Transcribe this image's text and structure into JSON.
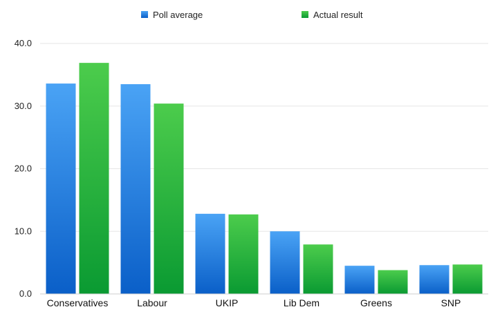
{
  "chart_data": {
    "type": "bar",
    "title": "",
    "xlabel": "",
    "ylabel": "",
    "ylim": [
      0,
      40
    ],
    "yticks": [
      "0.0",
      "10.0",
      "20.0",
      "30.0",
      "40.0"
    ],
    "grid": true,
    "legend_position": "top",
    "categories": [
      "Conservatives",
      "Labour",
      "UKIP",
      "Lib Dem",
      "Greens",
      "SNP"
    ],
    "series": [
      {
        "name": "Poll average",
        "color": "#2f7fe0",
        "values": [
          33.6,
          33.5,
          12.8,
          10.0,
          4.5,
          4.6
        ]
      },
      {
        "name": "Actual result",
        "color": "#1fae3c",
        "values": [
          36.9,
          30.4,
          12.7,
          7.9,
          3.8,
          4.7
        ]
      }
    ]
  }
}
